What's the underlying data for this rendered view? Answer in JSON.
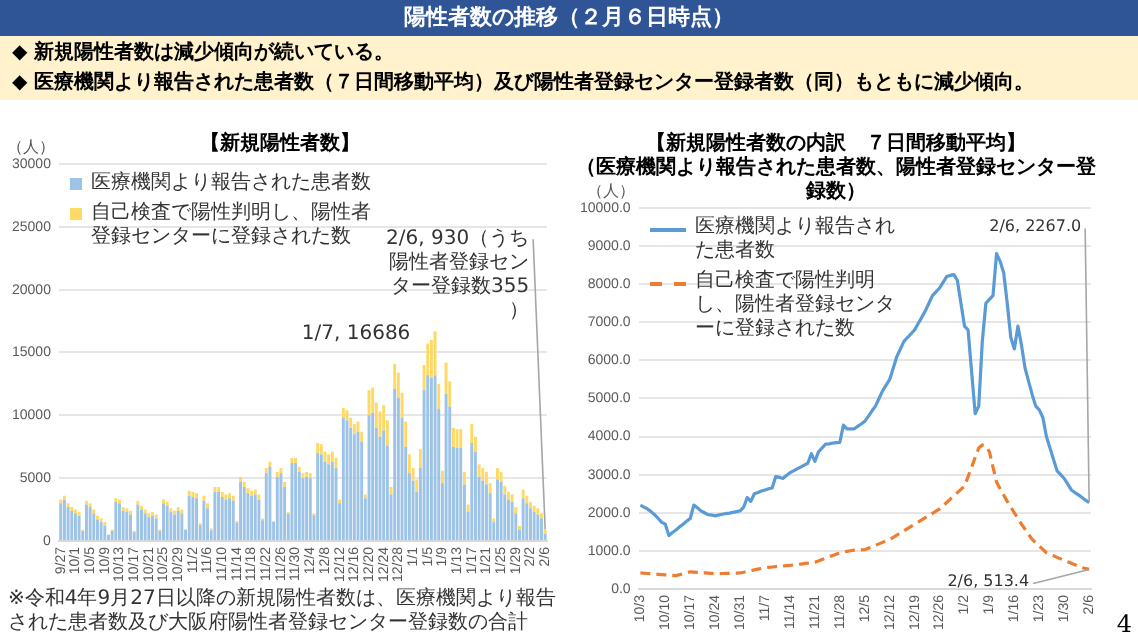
{
  "chart_data": [
    {
      "type": "other",
      "title": "陽性者数の推移（２月６日時点）",
      "annotations": [
        "◆ 新規陽性者数は減少傾向が続いている。",
        "◆ 医療機関より報告された患者数（７日間移動平均）及び陽性者登録センター登録者数（同）もともに減少傾向。",
        "4"
      ]
    },
    {
      "type": "bar",
      "stacked": true,
      "title": "【新規陽性者数】",
      "ylabel": "（人）",
      "legend": "top left",
      "grid": "y",
      "categories": [
        "9/27",
        null,
        null,
        null,
        "10/1",
        null,
        null,
        null,
        "10/5",
        null,
        null,
        null,
        "10/9",
        null,
        null,
        null,
        "10/13",
        null,
        null,
        null,
        "10/17",
        null,
        null,
        null,
        "10/21",
        null,
        null,
        null,
        "10/25",
        null,
        null,
        null,
        "10/29",
        null,
        null,
        null,
        "11/2",
        null,
        null,
        null,
        "11/6",
        null,
        null,
        null,
        "11/10",
        null,
        null,
        null,
        "11/14",
        null,
        null,
        null,
        "11/18",
        null,
        null,
        null,
        "11/22",
        null,
        null,
        null,
        "11/26",
        null,
        null,
        null,
        "11/30",
        null,
        null,
        null,
        "12/4",
        null,
        null,
        null,
        "12/8",
        null,
        null,
        null,
        "12/12",
        null,
        null,
        null,
        "12/16",
        null,
        null,
        null,
        "12/20",
        null,
        null,
        null,
        "12/24",
        null,
        null,
        null,
        "12/28",
        null,
        null,
        null,
        "1/1",
        null,
        null,
        null,
        "1/5",
        null,
        null,
        null,
        "1/9",
        null,
        null,
        null,
        "1/13",
        null,
        null,
        null,
        "1/17",
        null,
        null,
        null,
        "1/21",
        null,
        null,
        null,
        "1/25",
        null,
        null,
        null,
        "1/29",
        null,
        null,
        null,
        "2/2",
        null,
        null,
        null,
        "2/6"
      ],
      "series": [
        {
          "name": "医療機関より報告された患者数",
          "color": "#9dc3e6",
          "values": [
            3000,
            3300,
            2700,
            2400,
            2200,
            2000,
            800,
            2900,
            2700,
            2200,
            1700,
            1500,
            1200,
            500,
            800,
            3100,
            3000,
            2400,
            2300,
            2100,
            700,
            2900,
            2500,
            2200,
            1900,
            2000,
            1800,
            800,
            3000,
            2800,
            2300,
            2100,
            2400,
            2200,
            900,
            3600,
            3500,
            3400,
            1250,
            3200,
            2600,
            850,
            3900,
            3900,
            3500,
            3300,
            3400,
            3200,
            1450,
            4700,
            4300,
            3800,
            3600,
            3700,
            3300,
            1650,
            5400,
            5900,
            1550,
            5100,
            5400,
            4300,
            2150,
            6200,
            6200,
            5500,
            5000,
            5100,
            5000,
            2050,
            7000,
            6900,
            6300,
            6100,
            6300,
            5800,
            3000,
            9800,
            9600,
            9000,
            8500,
            8700,
            7900,
            3400,
            10000,
            10200,
            9000,
            8300,
            8800,
            7600,
            3700,
            12100,
            11400,
            9800,
            7500,
            5400,
            4800,
            3900,
            5800,
            12000,
            13200,
            13000,
            13186,
            10500,
            4600,
            11700,
            10700,
            7500,
            7400,
            7400,
            4500,
            2300,
            7800,
            7100,
            5100,
            4800,
            4500,
            3800,
            1500,
            4900,
            4700,
            3700,
            3300,
            3100,
            2200,
            900,
            3400,
            3000,
            2600,
            2300,
            2100,
            1800,
            575
          ]
        },
        {
          "name": "自己検査で陽性判明し、陽性者登録センターに登録された数",
          "color": "#ffd966",
          "values": [
            300,
            300,
            300,
            300,
            300,
            300,
            100,
            300,
            300,
            300,
            300,
            300,
            300,
            null,
            100,
            300,
            300,
            300,
            300,
            300,
            100,
            300,
            300,
            300,
            300,
            300,
            300,
            100,
            300,
            300,
            300,
            300,
            300,
            300,
            null,
            400,
            400,
            400,
            150,
            400,
            400,
            150,
            400,
            400,
            400,
            400,
            400,
            400,
            150,
            400,
            400,
            400,
            400,
            400,
            400,
            150,
            400,
            400,
            null,
            400,
            400,
            400,
            150,
            400,
            400,
            400,
            400,
            400,
            400,
            150,
            800,
            800,
            800,
            800,
            800,
            800,
            300,
            800,
            800,
            800,
            800,
            800,
            800,
            300,
            2000,
            2000,
            2000,
            2000,
            2000,
            2000,
            600,
            2000,
            2000,
            2000,
            2000,
            1500,
            1000,
            1000,
            1500,
            2000,
            2500,
            3000,
            3500,
            2000,
            1000,
            2500,
            2000,
            1500,
            1500,
            1500,
            1000,
            600,
            1500,
            1200,
            1000,
            1000,
            1000,
            800,
            300,
            900,
            800,
            700,
            600,
            600,
            500,
            300,
            700,
            600,
            500,
            500,
            500,
            400,
            355
          ]
        }
      ],
      "ylim": [
        0,
        30000
      ],
      "yticks": [
        0,
        5000,
        10000,
        15000,
        20000,
        25000,
        30000
      ],
      "annotations": [
        "1/7, 16686",
        {
          "text": "2/6, 930（うち陽性者登録センター登録数355）",
          "x": "2/6",
          "y": 930
        },
        "※令和4年9月27日以降の新規陽性者数は、医療機関より報告された患者数及び大阪府陽性者登録センター登録数の合計"
      ]
    },
    {
      "type": "line",
      "title": "【新規陽性者数の内訳　７日間移動平均】",
      "subtitle": "（医療機関より報告された患者数、陽性者登録センター登録数）",
      "ylabel": "（人）",
      "legend": "top left",
      "grid": "y",
      "marker": "none",
      "categories": [
        "10/3",
        null,
        null,
        null,
        null,
        null,
        null,
        "10/10",
        null,
        null,
        null,
        null,
        null,
        null,
        "10/17",
        null,
        null,
        null,
        null,
        null,
        null,
        "10/24",
        null,
        null,
        null,
        null,
        null,
        null,
        "10/31",
        null,
        null,
        null,
        null,
        null,
        null,
        "11/7",
        null,
        null,
        null,
        null,
        null,
        null,
        "11/14",
        null,
        null,
        null,
        null,
        null,
        null,
        "11/21",
        null,
        null,
        null,
        null,
        null,
        null,
        "11/28",
        null,
        null,
        null,
        null,
        null,
        null,
        "12/5",
        null,
        null,
        null,
        null,
        null,
        null,
        "12/12",
        null,
        null,
        null,
        null,
        null,
        null,
        "12/19",
        null,
        null,
        null,
        null,
        null,
        null,
        "12/26",
        null,
        null,
        null,
        null,
        null,
        null,
        "1/2",
        null,
        null,
        null,
        null,
        null,
        null,
        "1/9",
        null,
        null,
        null,
        null,
        null,
        null,
        "1/16",
        null,
        null,
        null,
        null,
        null,
        null,
        "1/23",
        null,
        null,
        null,
        null,
        null,
        null,
        "1/30",
        null,
        null,
        null,
        null,
        null,
        null,
        "2/6"
      ],
      "series": [
        {
          "name": "医療機関より報告された患者数",
          "color": "#5b9bd5",
          "line_style": "solid",
          "values": [
            2200,
            2150,
            2100,
            2030,
            1950,
            1850,
            1750,
            1700,
            1400,
            1480,
            1550,
            1630,
            1700,
            1780,
            1850,
            2200,
            2130,
            2050,
            2000,
            1950,
            1940,
            1920,
            1940,
            1960,
            1980,
            1990,
            2010,
            2030,
            2050,
            2150,
            2400,
            2300,
            2500,
            2530,
            2570,
            2600,
            2630,
            2650,
            2950,
            2930,
            2900,
            2980,
            3050,
            3100,
            3150,
            3200,
            3250,
            3300,
            3550,
            3350,
            3600,
            3700,
            3800,
            3810,
            3830,
            3840,
            3850,
            4300,
            4200,
            4200,
            4200,
            4270,
            4330,
            4400,
            4530,
            4670,
            4800,
            5000,
            5200,
            5350,
            5500,
            5800,
            6100,
            6300,
            6500,
            6600,
            6700,
            6800,
            6970,
            7130,
            7300,
            7500,
            7700,
            7800,
            7900,
            8050,
            8200,
            8230,
            8250,
            8100,
            7500,
            6900,
            6800,
            5700,
            4600,
            4800,
            6500,
            7500,
            7600,
            7700,
            8800,
            8600,
            8300,
            7500,
            6600,
            6300,
            6900,
            6400,
            5800,
            5450,
            5100,
            4800,
            4700,
            4500,
            4000,
            3700,
            3400,
            3100,
            3000,
            2900,
            2750,
            2600,
            2530,
            2470,
            2400,
            2330,
            2267
          ]
        },
        {
          "name": "自己検査で陽性判明し、陽性者登録センターに登録された数",
          "color": "#ed7d31",
          "line_style": "dashed",
          "values": [
            420,
            413,
            406,
            399,
            391,
            384,
            377,
            370,
            363,
            357,
            350,
            375,
            400,
            425,
            450,
            443,
            436,
            429,
            421,
            414,
            407,
            400,
            403,
            406,
            409,
            411,
            414,
            417,
            420,
            440,
            460,
            480,
            500,
            520,
            540,
            560,
            569,
            577,
            586,
            594,
            603,
            611,
            620,
            631,
            643,
            654,
            666,
            677,
            689,
            700,
            736,
            771,
            807,
            843,
            879,
            914,
            950,
            968,
            985,
            1003,
            1020,
            1023,
            1027,
            1030,
            1069,
            1107,
            1146,
            1184,
            1223,
            1261,
            1300,
            1357,
            1414,
            1471,
            1529,
            1586,
            1643,
            1700,
            1757,
            1814,
            1871,
            1929,
            1986,
            2043,
            2100,
            2186,
            2271,
            2357,
            2443,
            2529,
            2614,
            2700,
            2950,
            3200,
            3450,
            3700,
            3780,
            3750,
            3600,
            3200,
            2800,
            2633,
            2467,
            2300,
            2150,
            2000,
            1850,
            1700,
            1567,
            1433,
            1300,
            1213,
            1125,
            1038,
            950,
            910,
            870,
            830,
            790,
            750,
            712,
            674,
            636,
            598,
            560,
            537,
            513.4
          ]
        }
      ],
      "ylim": [
        0,
        10000
      ],
      "yticks": [
        {
          "value": 0,
          "label": "0.0"
        },
        {
          "value": 1000,
          "label": "1000.0"
        },
        {
          "value": 2000,
          "label": "2000.0"
        },
        {
          "value": 3000,
          "label": "3000.0"
        },
        {
          "value": 4000,
          "label": "4000.0"
        },
        {
          "value": 5000,
          "label": "5000.0"
        },
        {
          "value": 6000,
          "label": "6000.0"
        },
        {
          "value": 7000,
          "label": "7000.0"
        },
        {
          "value": 8000,
          "label": "8000.0"
        },
        {
          "value": 9000,
          "label": "9000.0"
        },
        {
          "value": 10000,
          "label": "10000.0"
        }
      ],
      "annotations": [
        {
          "text": "2/6, 2267.0",
          "x": "2/6",
          "y": 2267
        },
        {
          "text": "2/6, 513.4",
          "x": "2/6",
          "y": 513.4
        }
      ]
    }
  ]
}
